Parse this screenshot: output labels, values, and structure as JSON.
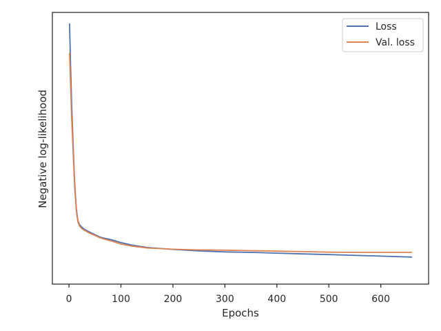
{
  "chart_data": {
    "type": "line",
    "title": "",
    "xlabel": "Epochs",
    "ylabel": "Negative log-likelihood",
    "xlim": [
      -32,
      692
    ],
    "ylim": [
      0,
      100
    ],
    "x_ticks": [
      0,
      100,
      200,
      300,
      400,
      500,
      600
    ],
    "y_ticks_shown": false,
    "grid": false,
    "legend_position": "top-right",
    "series": [
      {
        "name": "Loss",
        "color": "#4c72b0",
        "x": [
          1,
          3,
          5,
          8,
          11,
          14,
          17,
          20,
          25,
          30,
          40,
          50,
          60,
          70,
          80,
          100,
          120,
          150,
          200,
          250,
          300,
          350,
          400,
          450,
          500,
          550,
          600,
          660
        ],
        "y": [
          100,
          83,
          68,
          50,
          35,
          25,
          20,
          18.3,
          17.2,
          16.3,
          15.2,
          14.2,
          13.2,
          12.7,
          12.2,
          11.0,
          10.0,
          9.0,
          8.2,
          7.6,
          7.2,
          7.0,
          6.7,
          6.4,
          6.1,
          5.8,
          5.5,
          5.1
        ]
      },
      {
        "name": "Val. loss",
        "color": "#dd8452",
        "x": [
          1,
          3,
          5,
          8,
          11,
          14,
          17,
          20,
          25,
          30,
          40,
          50,
          60,
          70,
          80,
          100,
          120,
          150,
          200,
          250,
          300,
          350,
          400,
          450,
          500,
          550,
          600,
          660
        ],
        "y": [
          88,
          75,
          62,
          47,
          33,
          24,
          19.5,
          17.8,
          16.6,
          15.9,
          14.8,
          13.9,
          12.9,
          12.3,
          11.7,
          10.4,
          9.6,
          8.8,
          8.3,
          8.0,
          7.9,
          7.7,
          7.5,
          7.3,
          7.1,
          7.0,
          7.0,
          7.0
        ]
      }
    ]
  }
}
